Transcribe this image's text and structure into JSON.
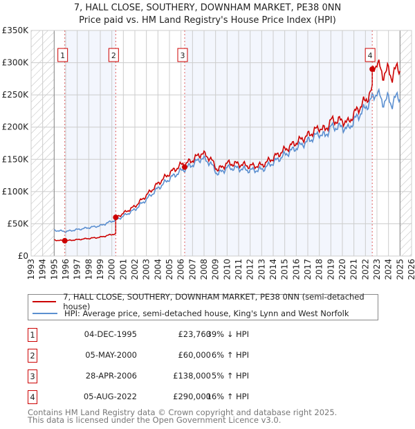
{
  "title": {
    "line1": "7, HALL CLOSE, SOUTHERY, DOWNHAM MARKET, PE38 0NN",
    "line2": "Price paid vs. HM Land Registry's House Price Index (HPI)"
  },
  "colors": {
    "property": "#cc0000",
    "hpi": "#5b8fd0",
    "shade": "#f3f6fd",
    "grid": "#cccccc"
  },
  "legend": {
    "property": "7, HALL CLOSE, SOUTHERY, DOWNHAM MARKET, PE38 0NN (semi-detached house)",
    "hpi": "HPI: Average price, semi-detached house, King's Lynn and West Norfolk"
  },
  "sales": [
    {
      "n": "1",
      "date": "04-DEC-1995",
      "price": "£23,760",
      "hpi": "39% ↓ HPI"
    },
    {
      "n": "2",
      "date": "05-MAY-2000",
      "price": "£60,000",
      "hpi": "6% ↑ HPI"
    },
    {
      "n": "3",
      "date": "28-APR-2006",
      "price": "£138,000",
      "hpi": "5% ↑ HPI"
    },
    {
      "n": "4",
      "date": "05-AUG-2022",
      "price": "£290,000",
      "hpi": "16% ↑ HPI"
    }
  ],
  "footer": {
    "line1": "Contains HM Land Registry data © Crown copyright and database right 2025.",
    "line2": "This data is licensed under the Open Government Licence v3.0."
  },
  "chart_data": {
    "type": "line",
    "xlim": [
      1993,
      2026
    ],
    "ylim": [
      0,
      350000
    ],
    "yticks": [
      0,
      50000,
      100000,
      150000,
      200000,
      250000,
      300000,
      350000
    ],
    "ytick_labels": [
      "£0",
      "£50K",
      "£100K",
      "£150K",
      "£200K",
      "£250K",
      "£300K",
      "£350K"
    ],
    "xticks": [
      "1993",
      "1994",
      "1995",
      "1996",
      "1997",
      "1998",
      "1999",
      "2000",
      "2001",
      "2002",
      "2003",
      "2004",
      "2005",
      "2006",
      "2007",
      "2008",
      "2009",
      "2010",
      "2011",
      "2012",
      "2013",
      "2014",
      "2015",
      "2016",
      "2017",
      "2018",
      "2019",
      "2020",
      "2021",
      "2022",
      "2023",
      "2024",
      "2025",
      "2026"
    ],
    "data_range": [
      1995,
      2025
    ],
    "sale_points": [
      {
        "label": "1",
        "x": 1995.92,
        "y": 23760
      },
      {
        "label": "2",
        "x": 2000.34,
        "y": 60000
      },
      {
        "label": "3",
        "x": 2006.32,
        "y": 138000
      },
      {
        "label": "4",
        "x": 2022.59,
        "y": 290000
      }
    ],
    "hpi_series": {
      "name": "HPI",
      "x": [
        1995,
        1996,
        1997,
        1998,
        1999,
        2000,
        2000.4,
        2001,
        2002,
        2003,
        2004,
        2005,
        2006,
        2007,
        2007.8,
        2008.5,
        2009.2,
        2010,
        2011,
        2012,
        2013,
        2014,
        2015,
        2016,
        2017,
        2018,
        2018.5,
        2019,
        2020,
        2020.5,
        2021,
        2022,
        2022.6,
        2023,
        2023.5,
        2024,
        2024.3,
        2024.8,
        2025
      ],
      "y": [
        40000,
        38000,
        41000,
        44000,
        47000,
        54000,
        56000,
        62000,
        72000,
        88000,
        105000,
        120000,
        132000,
        142000,
        152000,
        145000,
        127000,
        137000,
        136000,
        133000,
        134000,
        145000,
        157000,
        168000,
        178000,
        190000,
        186000,
        200000,
        200000,
        197000,
        210000,
        230000,
        245000,
        255000,
        238000,
        245000,
        235000,
        250000,
        245000
      ]
    },
    "property_factors": [
      {
        "from": 1995,
        "to": 2000.34,
        "factor": 0.62
      },
      {
        "from": 2000.34,
        "to": 2006.32,
        "factor": 1.07
      },
      {
        "from": 2006.32,
        "to": 2022.59,
        "factor": 1.05
      },
      {
        "from": 2022.59,
        "to": 2025,
        "factor": 1.18
      }
    ]
  }
}
